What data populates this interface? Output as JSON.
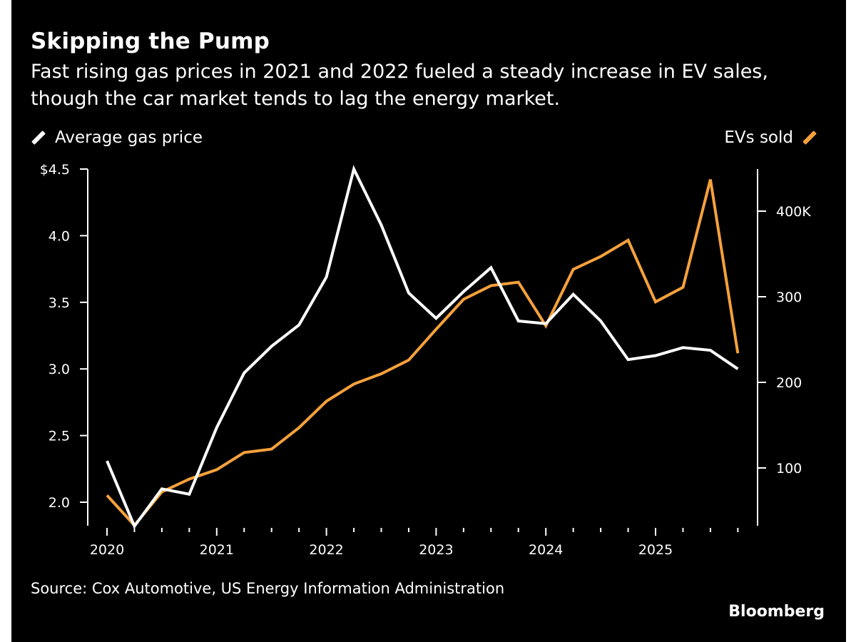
{
  "chart_data": {
    "type": "line",
    "title": "Skipping the Pump",
    "subtitle": "Fast rising gas prices in 2021 and 2022 fueled a steady increase in EV sales, though the car market tends to lag the energy market.",
    "x": [
      "2020-Q1",
      "2020-Q2",
      "2020-Q3",
      "2020-Q4",
      "2021-Q1",
      "2021-Q2",
      "2021-Q3",
      "2021-Q4",
      "2022-Q1",
      "2022-Q2",
      "2022-Q3",
      "2022-Q4",
      "2023-Q1",
      "2023-Q2",
      "2023-Q3",
      "2023-Q4",
      "2024-Q1",
      "2024-Q2",
      "2024-Q3",
      "2024-Q4",
      "2025-Q1",
      "2025-Q2",
      "2025-Q3",
      "2025-Q4"
    ],
    "x_tick_labels": [
      "2020",
      "2021",
      "2022",
      "2023",
      "2024",
      "2025"
    ],
    "series": [
      {
        "name": "Average gas price",
        "axis": "left",
        "color": "#ffffff",
        "values": [
          2.31,
          1.82,
          2.1,
          2.06,
          2.56,
          2.97,
          3.17,
          3.33,
          3.69,
          4.5,
          4.08,
          3.57,
          3.38,
          3.58,
          3.76,
          3.36,
          3.34,
          3.56,
          3.36,
          3.07,
          3.1,
          3.16,
          3.14,
          3.0
        ]
      },
      {
        "name": "EVs sold",
        "axis": "right",
        "color": "#f5a13b",
        "values": [
          68,
          33,
          72,
          87,
          98,
          118,
          122,
          147,
          178,
          198,
          210,
          226,
          262,
          297,
          313,
          317,
          266,
          332,
          347,
          366,
          294,
          311,
          437,
          234
        ]
      }
    ],
    "left_axis": {
      "ylim": [
        1.82,
        4.5
      ],
      "ticks": [
        2.0,
        2.5,
        3.0,
        3.5,
        4.0,
        4.5
      ],
      "tick_labels": [
        "2.0",
        "2.5",
        "3.0",
        "3.5",
        "4.0",
        "$4.5"
      ]
    },
    "right_axis": {
      "ylim": [
        33,
        450
      ],
      "ticks": [
        100,
        200,
        300,
        400
      ],
      "tick_labels": [
        "100",
        "200",
        "300",
        "400K"
      ]
    },
    "grid": false,
    "legend": {
      "left": "Average gas price",
      "right": "EVs sold"
    },
    "source": "Source: Cox Automotive, US Energy Information Administration",
    "brand": "Bloomberg"
  }
}
